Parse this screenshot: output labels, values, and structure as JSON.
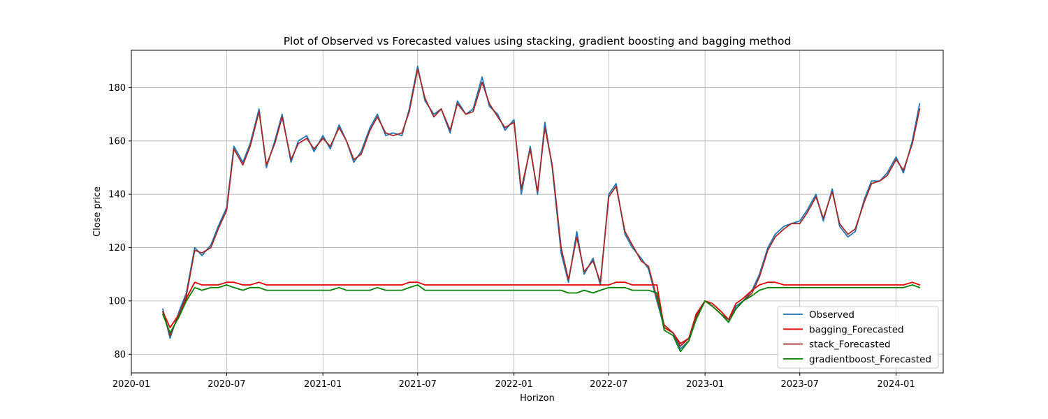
{
  "chart_data": {
    "type": "line",
    "title": "Plot of Observed vs Forecasted values using stacking, gradient boosting and bagging method",
    "xlabel": "Horizon",
    "ylabel": "Close price",
    "xlim": [
      "2020-01-01",
      "2024-03-31"
    ],
    "ylim": [
      73,
      194
    ],
    "x_ticks": [
      "2020-01",
      "2020-07",
      "2021-01",
      "2021-07",
      "2022-01",
      "2022-07",
      "2023-01",
      "2023-07",
      "2024-01"
    ],
    "y_ticks": [
      80,
      100,
      120,
      140,
      160,
      180
    ],
    "grid": true,
    "legend_position": "lower-right",
    "x": [
      "2020-03-01",
      "2020-03-15",
      "2020-04-01",
      "2020-04-15",
      "2020-05-01",
      "2020-05-15",
      "2020-06-01",
      "2020-06-15",
      "2020-07-01",
      "2020-07-15",
      "2020-08-01",
      "2020-08-15",
      "2020-09-01",
      "2020-09-15",
      "2020-10-01",
      "2020-10-15",
      "2020-11-01",
      "2020-11-15",
      "2020-12-01",
      "2020-12-15",
      "2021-01-01",
      "2021-01-15",
      "2021-02-01",
      "2021-02-15",
      "2021-03-01",
      "2021-03-15",
      "2021-04-01",
      "2021-04-15",
      "2021-05-01",
      "2021-05-15",
      "2021-06-01",
      "2021-06-15",
      "2021-07-01",
      "2021-07-15",
      "2021-08-01",
      "2021-08-15",
      "2021-09-01",
      "2021-09-15",
      "2021-10-01",
      "2021-10-15",
      "2021-11-01",
      "2021-11-15",
      "2021-12-01",
      "2021-12-15",
      "2022-01-01",
      "2022-01-15",
      "2022-02-01",
      "2022-02-15",
      "2022-03-01",
      "2022-03-15",
      "2022-04-01",
      "2022-04-15",
      "2022-05-01",
      "2022-05-15",
      "2022-06-01",
      "2022-06-15",
      "2022-07-01",
      "2022-07-15",
      "2022-08-01",
      "2022-08-15",
      "2022-09-01",
      "2022-09-15",
      "2022-10-01",
      "2022-10-15",
      "2022-11-01",
      "2022-11-15",
      "2022-12-01",
      "2022-12-15",
      "2023-01-01",
      "2023-01-15",
      "2023-02-01",
      "2023-02-15",
      "2023-03-01",
      "2023-03-15",
      "2023-04-01",
      "2023-04-15",
      "2023-05-01",
      "2023-05-15",
      "2023-06-01",
      "2023-06-15",
      "2023-07-01",
      "2023-07-15",
      "2023-08-01",
      "2023-08-15",
      "2023-09-01",
      "2023-09-15",
      "2023-10-01",
      "2023-10-15",
      "2023-11-01",
      "2023-11-15",
      "2023-12-01",
      "2023-12-15",
      "2024-01-01",
      "2024-01-15",
      "2024-02-01",
      "2024-02-15"
    ],
    "series": [
      {
        "name": "Observed",
        "color": "#1f77b4",
        "width": 1.8,
        "values": [
          97,
          86,
          96,
          103,
          120,
          117,
          121,
          128,
          135,
          158,
          152,
          159,
          172,
          150,
          160,
          170,
          152,
          160,
          162,
          156,
          162,
          157,
          166,
          160,
          152,
          156,
          165,
          170,
          162,
          163,
          162,
          172,
          188,
          175,
          170,
          172,
          163,
          175,
          170,
          172,
          184,
          173,
          170,
          164,
          168,
          140,
          158,
          140,
          167,
          150,
          118,
          107,
          126,
          110,
          116,
          106,
          140,
          144,
          125,
          120,
          116,
          112,
          100,
          90,
          88,
          82,
          85,
          95,
          100,
          98,
          95,
          92,
          98,
          100,
          104,
          110,
          120,
          125,
          128,
          129,
          130,
          134,
          140,
          130,
          142,
          128,
          124,
          126,
          138,
          145,
          145,
          148,
          154,
          148,
          160,
          174
        ]
      },
      {
        "name": "bagging_Forecasted",
        "color": "#e00000",
        "width": 1.8,
        "values": [
          96,
          90,
          95,
          101,
          107,
          106,
          106,
          106,
          107,
          107,
          106,
          106,
          107,
          106,
          106,
          106,
          106,
          106,
          106,
          106,
          106,
          106,
          106,
          106,
          106,
          106,
          106,
          106,
          106,
          106,
          106,
          107,
          107,
          106,
          106,
          106,
          106,
          106,
          106,
          106,
          106,
          106,
          106,
          106,
          106,
          106,
          106,
          106,
          106,
          106,
          106,
          106,
          106,
          106,
          106,
          106,
          106,
          107,
          107,
          106,
          106,
          106,
          106,
          90,
          88,
          84,
          86,
          95,
          100,
          99,
          96,
          93,
          99,
          101,
          104,
          106,
          107,
          107,
          106,
          106,
          106,
          106,
          106,
          106,
          106,
          106,
          106,
          106,
          106,
          106,
          106,
          106,
          106,
          106,
          107,
          106
        ]
      },
      {
        "name": "stack_Forecasted",
        "color": "#a52a2a",
        "width": 1.8,
        "values": [
          96,
          87,
          95,
          102,
          119,
          118,
          120,
          127,
          134,
          157,
          151,
          158,
          171,
          151,
          159,
          169,
          153,
          159,
          161,
          157,
          161,
          158,
          165,
          160,
          153,
          155,
          164,
          169,
          163,
          162,
          163,
          171,
          187,
          176,
          169,
          172,
          164,
          174,
          170,
          171,
          182,
          174,
          169,
          165,
          167,
          142,
          157,
          141,
          165,
          151,
          120,
          108,
          124,
          111,
          115,
          107,
          139,
          143,
          126,
          121,
          115,
          113,
          101,
          91,
          88,
          83,
          86,
          94,
          100,
          98,
          95,
          93,
          97,
          100,
          103,
          109,
          119,
          124,
          127,
          129,
          129,
          133,
          139,
          131,
          141,
          129,
          125,
          127,
          137,
          144,
          145,
          147,
          153,
          149,
          159,
          172
        ]
      },
      {
        "name": "gradientboost_Forecasted",
        "color": "#007f00",
        "width": 1.8,
        "values": [
          95,
          88,
          94,
          100,
          105,
          104,
          105,
          105,
          106,
          105,
          104,
          105,
          105,
          104,
          104,
          104,
          104,
          104,
          104,
          104,
          104,
          104,
          105,
          104,
          104,
          104,
          104,
          105,
          104,
          104,
          104,
          105,
          106,
          104,
          104,
          104,
          104,
          104,
          104,
          104,
          104,
          104,
          104,
          104,
          104,
          104,
          104,
          104,
          104,
          104,
          104,
          103,
          103,
          104,
          103,
          104,
          105,
          105,
          105,
          104,
          104,
          104,
          103,
          89,
          87,
          81,
          85,
          93,
          100,
          98,
          95,
          92,
          97,
          100,
          102,
          104,
          105,
          105,
          105,
          105,
          105,
          105,
          105,
          105,
          105,
          105,
          105,
          105,
          105,
          105,
          105,
          105,
          105,
          105,
          106,
          105
        ]
      }
    ]
  }
}
